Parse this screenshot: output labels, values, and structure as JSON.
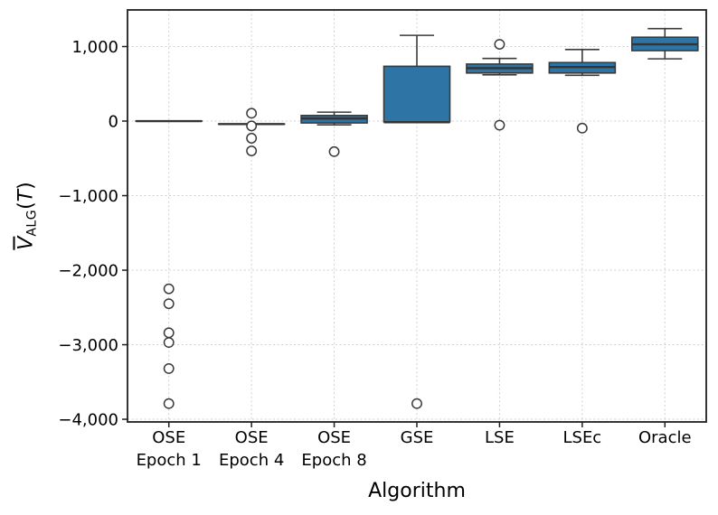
{
  "chart_data": {
    "type": "box",
    "title": "",
    "xlabel": "Algorithm",
    "ylabel": "V̄_ALG(T)",
    "ylabel_rich": {
      "var": "V",
      "sub": "ALG",
      "open": "(",
      "arg": "T",
      "close": ")"
    },
    "categories": [
      "OSE Epoch 1",
      "OSE Epoch 4",
      "OSE Epoch 8",
      "GSE",
      "LSE",
      "LSEc",
      "Oracle"
    ],
    "category_labels": [
      [
        "OSE",
        "Epoch 1"
      ],
      [
        "OSE",
        "Epoch 4"
      ],
      [
        "OSE",
        "Epoch 8"
      ],
      [
        "GSE"
      ],
      [
        "LSE"
      ],
      [
        "LSEc"
      ],
      [
        "Oracle"
      ]
    ],
    "ylim": [
      -4036,
      1491
    ],
    "yticks": [
      {
        "value": 1000,
        "label": "1,000"
      },
      {
        "value": 0,
        "label": "0"
      },
      {
        "value": -1000,
        "label": "−1,000"
      },
      {
        "value": -2000,
        "label": "−2,000"
      },
      {
        "value": -3000,
        "label": "−3,000"
      },
      {
        "value": -4000,
        "label": "−4,000"
      }
    ],
    "grid": {
      "horizontal": true,
      "vertical": true,
      "style": "dotted"
    },
    "legend": null,
    "colors": {
      "box_fill": "#2e74a4",
      "box_edge": "#3a3a3a",
      "median": "#343434",
      "whisker": "#3a3a3a",
      "outlier_edge": "#3a3a3a",
      "spine": "#1f1f1f",
      "grid": "#d0d0d0",
      "text": "#000000",
      "background": "#ffffff"
    },
    "boxes": [
      {
        "category": "OSE Epoch 1",
        "whislo": 0,
        "q1": 0,
        "med": 0,
        "q3": 0,
        "whishi": 0,
        "outliers": [
          -2250,
          -2450,
          -2840,
          -2970,
          -3320,
          -3790
        ]
      },
      {
        "category": "OSE Epoch 4",
        "whislo": -40,
        "q1": -40,
        "med": -40,
        "q3": -40,
        "whishi": -40,
        "outliers": [
          105,
          -65,
          -230,
          -400
        ]
      },
      {
        "category": "OSE Epoch 8",
        "whislo": -50,
        "q1": -25,
        "med": 35,
        "q3": 75,
        "whishi": 120,
        "outliers": [
          -410
        ]
      },
      {
        "category": "GSE",
        "whislo": -10,
        "q1": -10,
        "med": -15,
        "q3": 735,
        "whishi": 1150,
        "outliers": [
          -3790
        ]
      },
      {
        "category": "LSE",
        "whislo": 620,
        "q1": 645,
        "med": 710,
        "q3": 765,
        "whishi": 840,
        "outliers": [
          1030,
          -55
        ]
      },
      {
        "category": "LSEc",
        "whislo": 615,
        "q1": 645,
        "med": 725,
        "q3": 785,
        "whishi": 960,
        "outliers": [
          -95
        ]
      },
      {
        "category": "Oracle",
        "whislo": 835,
        "q1": 945,
        "med": 1030,
        "q3": 1125,
        "whishi": 1240,
        "outliers": []
      }
    ]
  }
}
